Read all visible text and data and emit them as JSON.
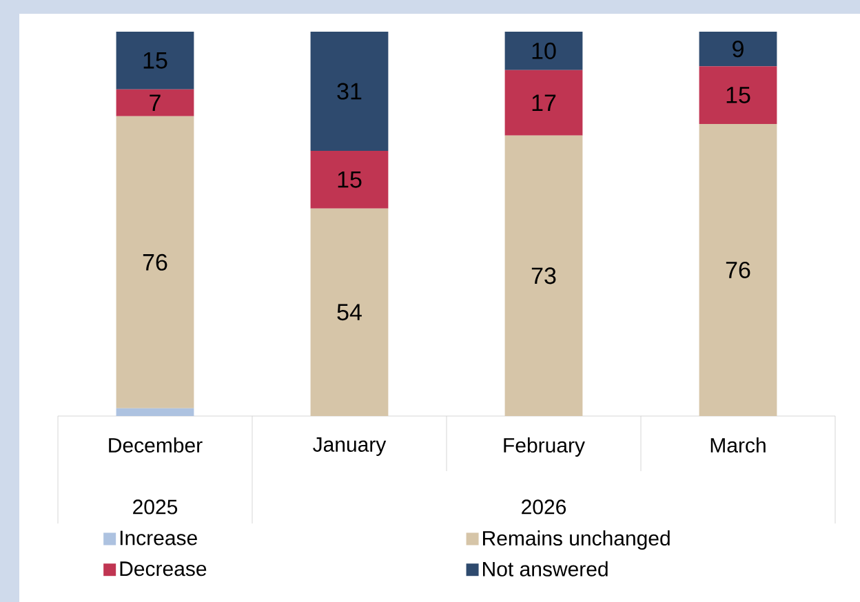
{
  "chart_data": {
    "type": "bar",
    "stacked": true,
    "categories": [
      "December",
      "January",
      "February",
      "March"
    ],
    "series": [
      {
        "name": "Increase",
        "color": "#adc2e0",
        "values": [
          2,
          0,
          0,
          0
        ],
        "value_labels": [
          null,
          null,
          null,
          null
        ]
      },
      {
        "name": "Remains unchanged",
        "color": "#d6c5a8",
        "values": [
          76,
          54,
          73,
          76
        ],
        "value_labels": [
          "76",
          "54",
          "73",
          "76"
        ]
      },
      {
        "name": "Decrease",
        "color": "#c03552",
        "values": [
          7,
          15,
          17,
          15
        ],
        "value_labels": [
          "7",
          "15",
          "17",
          "15"
        ]
      },
      {
        "name": "Not answered",
        "color": "#2e4a6e",
        "values": [
          15,
          31,
          10,
          9
        ],
        "value_labels": [
          "15",
          "31",
          "10",
          "9"
        ]
      }
    ],
    "annotations": [
      "2025",
      "2026"
    ],
    "legend": "bottom"
  }
}
